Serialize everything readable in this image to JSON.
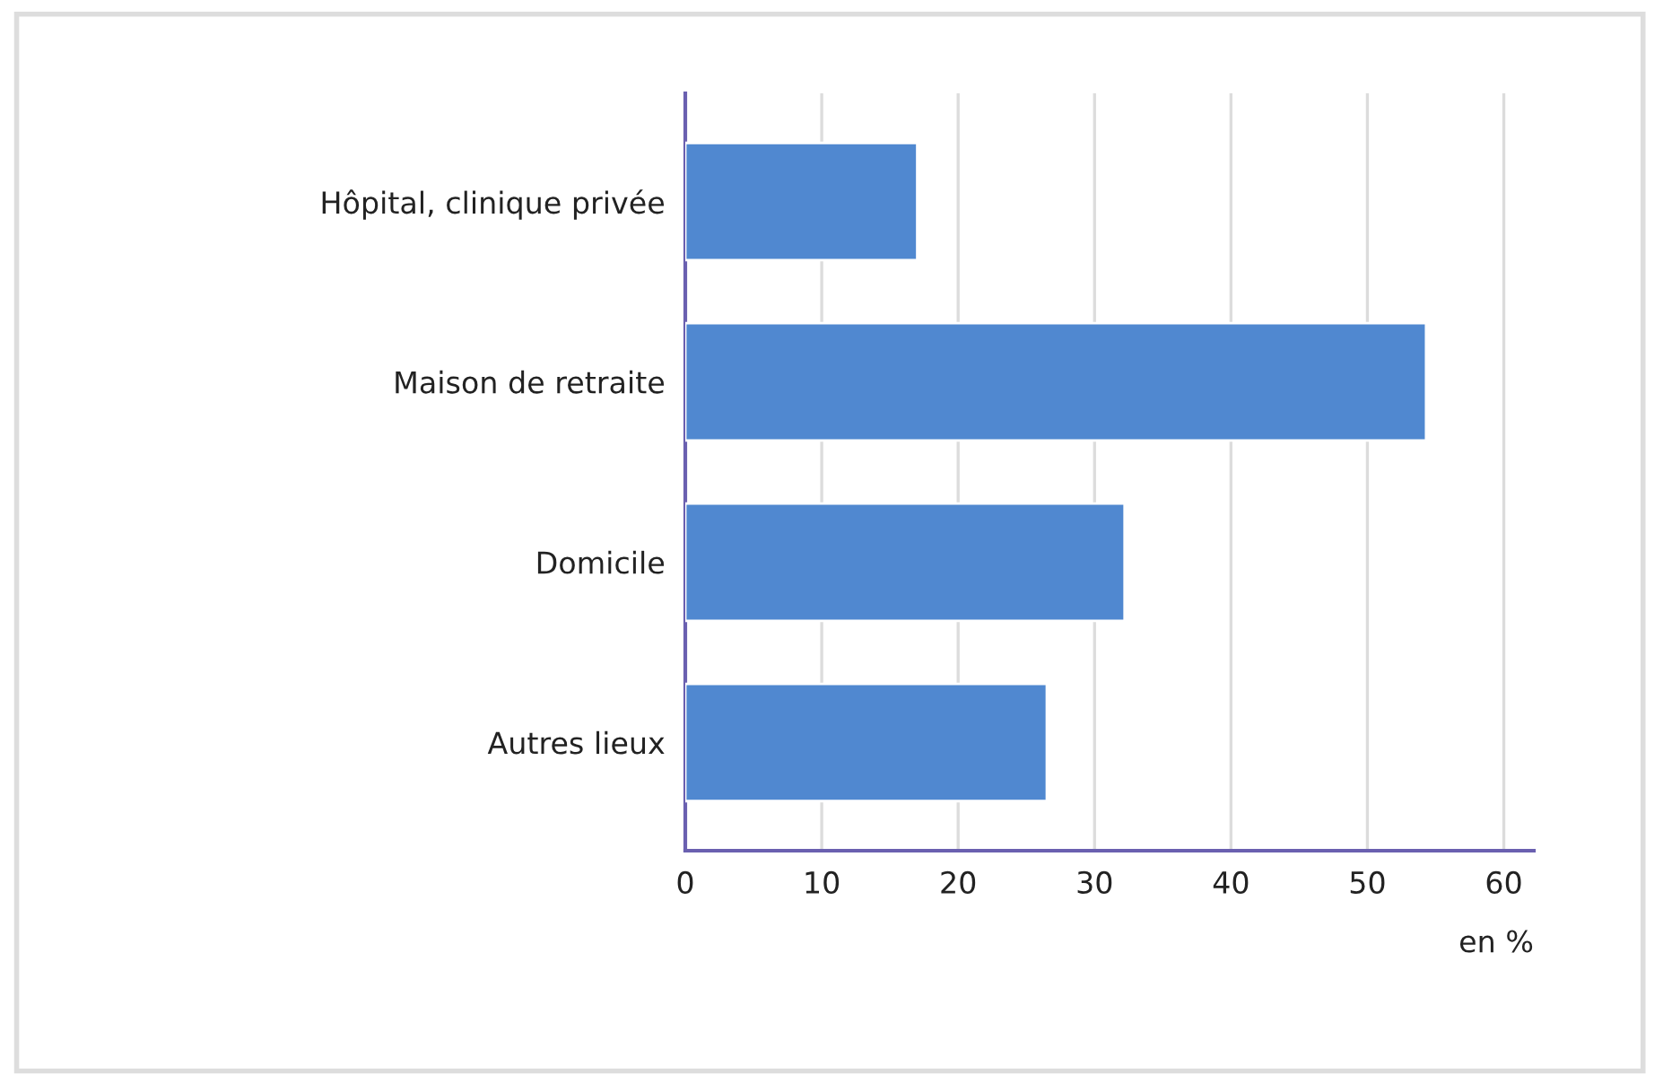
{
  "chart_data": {
    "type": "bar",
    "orientation": "horizontal",
    "xlabel": "en %",
    "categories": [
      "Hôpital, clinique privée",
      "Maison de retraite",
      "Domicile",
      "Autres lieux"
    ],
    "values": [
      17.0,
      54.3,
      32.2,
      26.5
    ],
    "color": "#5088d0",
    "xlim": [
      0,
      62.2
    ],
    "xticks": [
      0,
      10,
      20,
      30,
      40,
      50,
      60
    ],
    "grid": "x"
  }
}
